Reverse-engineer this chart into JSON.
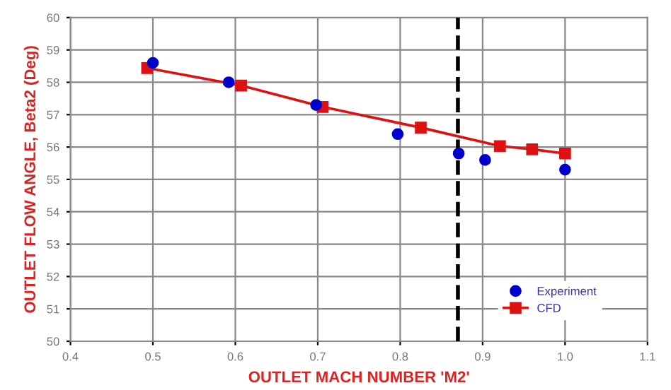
{
  "chart_data": {
    "type": "scatter",
    "xlabel": "OUTLET MACH NUMBER 'M2'",
    "ylabel": "OUTLET FLOW ANGLE, Beta2 (Deg)",
    "series": [
      {
        "name": "Experiment",
        "color": "#0000cc",
        "marker": "circle",
        "x": [
          0.5,
          0.592,
          0.698,
          0.797,
          0.871,
          0.903,
          1.0
        ],
        "values": [
          58.6,
          58.0,
          57.3,
          56.4,
          55.8,
          55.6,
          55.3
        ]
      },
      {
        "name": "CFD",
        "type": "line",
        "color": "#dd1111",
        "marker": "square",
        "x": [
          0.493,
          0.607,
          0.706,
          0.825,
          0.921,
          0.96,
          1.0
        ],
        "values": [
          58.44,
          57.9,
          57.24,
          56.6,
          56.03,
          55.93,
          55.8
        ]
      }
    ],
    "xlim": [
      0.4,
      1.1
    ],
    "xticks": [
      {
        "value": 0.4,
        "label": "0.4"
      },
      {
        "value": 0.5,
        "label": "0.5"
      },
      {
        "value": 0.6,
        "label": "0.6"
      },
      {
        "value": 0.7,
        "label": "0.7"
      },
      {
        "value": 0.8,
        "label": "0.8"
      },
      {
        "value": 0.9,
        "label": "0.9"
      },
      {
        "value": 1.0,
        "label": "1.0"
      },
      {
        "value": 1.1,
        "label": "1.1"
      }
    ],
    "ylim": [
      50,
      60
    ],
    "yticks": [
      50,
      51,
      52,
      53,
      54,
      55,
      56,
      57,
      58,
      59,
      60
    ],
    "ref_lines": [
      {
        "axis": "x",
        "value": 0.87,
        "color": "#000000",
        "line_style": "dashed"
      }
    ],
    "grid": true,
    "legend": "bottom right"
  }
}
